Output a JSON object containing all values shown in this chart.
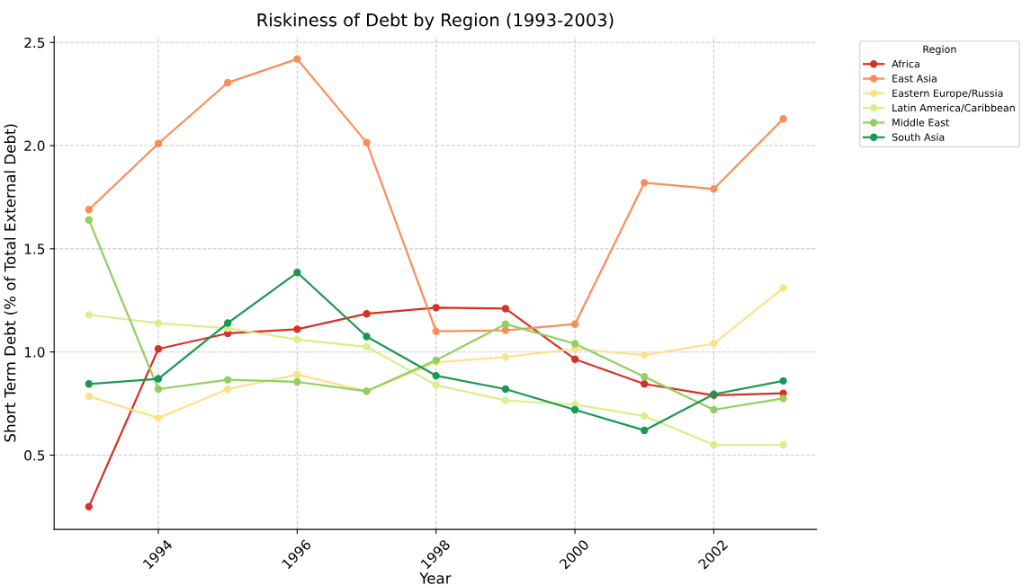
{
  "chart_data": {
    "type": "line",
    "title": "Riskiness of Debt by Region (1993-2003)",
    "xlabel": "Year",
    "ylabel": "Short Term Debt (% of Total External Debt)",
    "legend_title": "Region",
    "x": [
      1993,
      1994,
      1995,
      1996,
      1997,
      1998,
      1999,
      2000,
      2001,
      2002,
      2003
    ],
    "series": [
      {
        "name": "Africa",
        "color": "#d73027",
        "values": [
          0.25,
          1.015,
          1.09,
          1.11,
          1.185,
          1.215,
          1.21,
          0.965,
          0.845,
          0.79,
          0.8
        ]
      },
      {
        "name": "East Asia",
        "color": "#fc8d59",
        "values": [
          1.69,
          2.01,
          2.305,
          2.42,
          2.015,
          1.1,
          1.105,
          1.135,
          1.82,
          1.79,
          2.13
        ]
      },
      {
        "name": "Eastern Europe/Russia",
        "color": "#fee08b",
        "values": [
          0.785,
          0.68,
          0.82,
          0.89,
          0.81,
          0.95,
          0.975,
          1.015,
          0.985,
          1.04,
          1.31
        ]
      },
      {
        "name": "Latin America/Caribbean",
        "color": "#d9ef8b",
        "values": [
          1.18,
          1.14,
          1.115,
          1.06,
          1.025,
          0.84,
          0.765,
          0.745,
          0.69,
          0.55,
          0.55
        ]
      },
      {
        "name": "Middle East",
        "color": "#91cf60",
        "values": [
          1.64,
          0.82,
          0.865,
          0.855,
          0.81,
          0.96,
          1.135,
          1.04,
          0.88,
          0.72,
          0.775
        ]
      },
      {
        "name": "South Asia",
        "color": "#1a9850",
        "values": [
          0.845,
          0.87,
          1.14,
          1.385,
          1.075,
          0.885,
          0.82,
          0.72,
          0.62,
          0.795,
          0.86
        ]
      }
    ],
    "xlim": [
      1992.5,
      2003.48
    ],
    "xticks": [
      1994,
      1996,
      1998,
      2000,
      2002
    ],
    "ylim": [
      0.14,
      2.53
    ],
    "yticks": [
      0.5,
      {
        "value": 1,
        "label": "1.0"
      },
      1.5,
      {
        "value": 2,
        "label": "2.0"
      },
      2.5
    ],
    "grid": true,
    "legend": "top right",
    "marker": "circle",
    "line_style": "solid"
  }
}
